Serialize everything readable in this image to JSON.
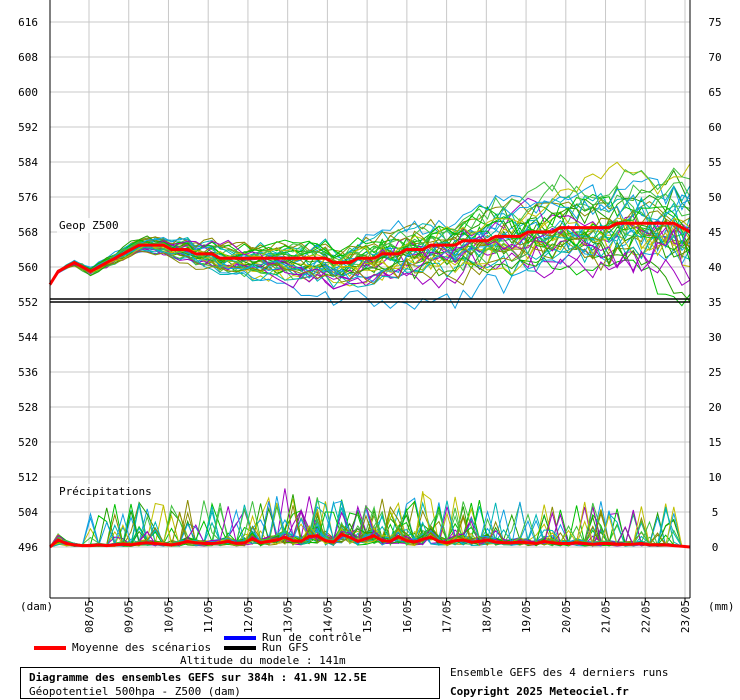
{
  "chart_data": {
    "type": "line",
    "y_left_ticks": [
      616,
      608,
      600,
      592,
      584,
      576,
      568,
      560,
      552,
      544,
      536,
      528,
      520,
      512,
      504,
      496
    ],
    "y_left_unit": "(dam)",
    "y_right_ticks": [
      75,
      70,
      65,
      60,
      55,
      50,
      45,
      40,
      35,
      30,
      25,
      20,
      15,
      10,
      5,
      0
    ],
    "y_right_unit": "(mm)",
    "x_ticks": [
      "08/05",
      "09/05",
      "10/05",
      "11/05",
      "12/05",
      "13/05",
      "14/05",
      "15/05",
      "16/05",
      "17/05",
      "18/05",
      "19/05",
      "20/05",
      "21/05",
      "22/05",
      "23/05"
    ],
    "geop_label": "Geop Z500",
    "precip_label": "Précipitations",
    "geop_mean": [
      556,
      559,
      560,
      561,
      560,
      559,
      560,
      561,
      562,
      563,
      564,
      565,
      565,
      565,
      565,
      564,
      564,
      564,
      563,
      563,
      563,
      562,
      562,
      562,
      562,
      562,
      562,
      562,
      562,
      562,
      562,
      562,
      562,
      562,
      562,
      561,
      561,
      561,
      562,
      562,
      562,
      563,
      563,
      563,
      564,
      564,
      564,
      565,
      565,
      565,
      565,
      566,
      566,
      566,
      566,
      567,
      567,
      567,
      567,
      568,
      568,
      568,
      568,
      569,
      569,
      569,
      569,
      569,
      569,
      569,
      570,
      570,
      570,
      570,
      570,
      570,
      570,
      570,
      569,
      568
    ],
    "precip_mean": [
      0,
      1,
      0.5,
      0.3,
      0.2,
      0.2,
      0.3,
      0.2,
      0.3,
      0.4,
      0.3,
      0.5,
      0.6,
      0.5,
      0.4,
      0.3,
      0.5,
      0.8,
      0.6,
      0.5,
      0.5,
      0.6,
      0.8,
      0.5,
      0.6,
      1.2,
      0.6,
      0.8,
      1.0,
      1.4,
      0.9,
      0.8,
      1.5,
      1.6,
      0.9,
      0.7,
      1.8,
      1.4,
      0.8,
      1.2,
      1.6,
      0.9,
      0.8,
      1.5,
      0.9,
      0.7,
      1.1,
      1.4,
      0.8,
      0.6,
      0.9,
      1.0,
      0.7,
      0.8,
      1.0,
      0.7,
      0.6,
      0.6,
      0.7,
      0.6,
      0.5,
      0.8,
      0.6,
      0.5,
      0.5,
      0.6,
      0.5,
      0.4,
      0.5,
      0.5,
      0.4,
      0.4,
      0.4,
      0.5,
      0.3,
      0.3,
      0.3,
      0.2,
      0.1,
      0
    ]
  },
  "legend": {
    "control": "Run de contrôle",
    "gfs": "Run GFS",
    "mean": "Moyenne des scénarios",
    "altitude": "Altitude du modele : 141m"
  },
  "info": {
    "title": "Diagramme des ensembles GEFS sur 384h : 41.9N 12.5E",
    "subtitle": "Géopotentiel 500hpa - Z500 (dam)",
    "right_top": "Ensemble GEFS des 4 derniers runs",
    "copyright": "Copyright 2025 Meteociel.fr"
  },
  "colors": {
    "mean": "#ff0000",
    "control": "#0000ff",
    "gfs": "#000000",
    "ensemble": [
      "#00c000",
      "#22a000",
      "#00b4b4",
      "#10a0e0",
      "#c0c000",
      "#a000c0",
      "#8a8a00",
      "#40c040"
    ]
  }
}
